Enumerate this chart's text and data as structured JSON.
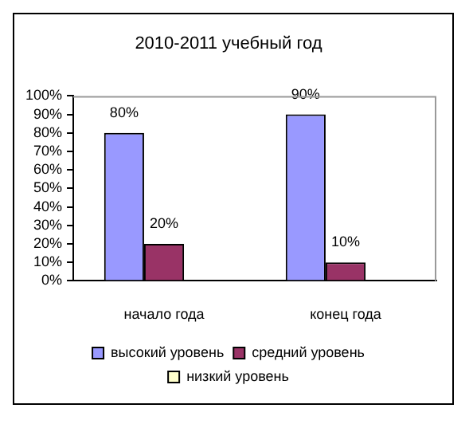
{
  "chart_data": {
    "type": "bar",
    "title": "2010-2011 учебный год",
    "categories": [
      "начало года",
      "конец года"
    ],
    "series": [
      {
        "name": "высокий уровень",
        "color": "#9999ff",
        "values": [
          80,
          90
        ],
        "value_labels": [
          "80%",
          "90%"
        ]
      },
      {
        "name": "средний уровень",
        "color": "#993366",
        "values": [
          20,
          10
        ],
        "value_labels": [
          "20%",
          "10%"
        ]
      },
      {
        "name": "низкий уровень",
        "color": "#ffffcc",
        "values": [
          null,
          null
        ],
        "value_labels": [
          null,
          null
        ]
      }
    ],
    "ylim": [
      0,
      100
    ],
    "yticks": [
      {
        "value": 0,
        "label": "0%"
      },
      {
        "value": 10,
        "label": "10%"
      },
      {
        "value": 20,
        "label": "20%"
      },
      {
        "value": 30,
        "label": "30%"
      },
      {
        "value": 40,
        "label": "40%"
      },
      {
        "value": 50,
        "label": "50%"
      },
      {
        "value": 60,
        "label": "60%"
      },
      {
        "value": 70,
        "label": "70%"
      },
      {
        "value": 80,
        "label": "80%"
      },
      {
        "value": 90,
        "label": "90%"
      },
      {
        "value": 100,
        "label": "100%"
      }
    ],
    "grid": false,
    "legend": "bottom"
  }
}
